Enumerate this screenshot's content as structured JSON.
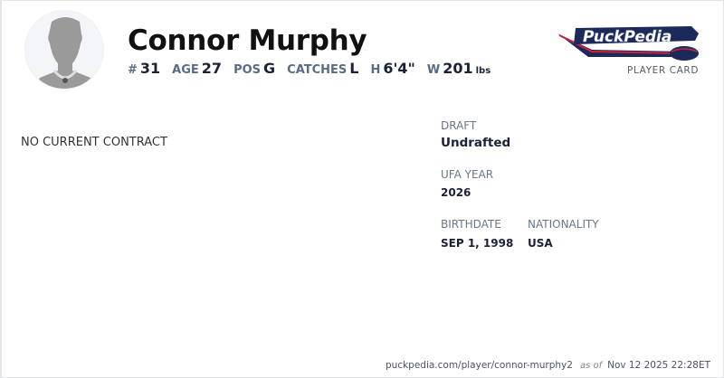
{
  "player": {
    "name": "Connor Murphy",
    "stats": [
      {
        "label": "#",
        "value": "31"
      },
      {
        "label": "AGE",
        "value": "27"
      },
      {
        "label": "POS",
        "value": "G"
      },
      {
        "label": "CATCHES",
        "value": "L"
      },
      {
        "label": "H",
        "value": "6'4\""
      },
      {
        "label": "W",
        "value": "201",
        "unit": "lbs"
      }
    ]
  },
  "brand": {
    "logo_text": "PuckPedia",
    "subtitle": "PLAYER CARD",
    "colors": {
      "navy": "#1b2a5a",
      "red": "#d0213a"
    }
  },
  "contract": {
    "status": "NO CURRENT CONTRACT"
  },
  "details": {
    "draft": {
      "label": "DRAFT",
      "value": "Undrafted"
    },
    "ufa": {
      "label": "UFA YEAR",
      "value": "2026"
    },
    "birthdate": {
      "label": "BIRTHDATE",
      "value": "SEP 1, 1998"
    },
    "nationality": {
      "label": "NATIONALITY",
      "value": "USA"
    }
  },
  "footer": {
    "url": "puckpedia.com/player/connor-murphy2",
    "as_of": "as of",
    "timestamp": "Nov 12 2025 22:28ET"
  }
}
